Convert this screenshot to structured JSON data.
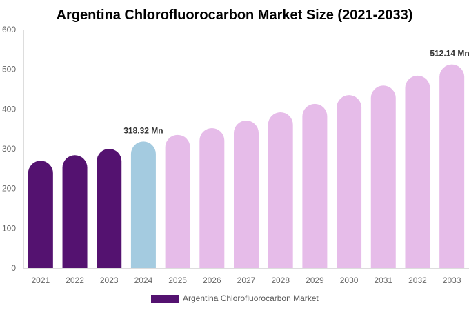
{
  "chart_data": {
    "type": "bar",
    "title": "Argentina Chlorofluorocarbon Market Size (2021-2033)",
    "xlabel": "",
    "ylabel": "",
    "ylim": [
      0,
      600
    ],
    "yticks": [
      0,
      100,
      200,
      300,
      400,
      500,
      600
    ],
    "grid": false,
    "legend_position": "bottom",
    "categories": [
      "2021",
      "2022",
      "2023",
      "2024",
      "2025",
      "2026",
      "2027",
      "2028",
      "2029",
      "2030",
      "2031",
      "2032",
      "2033"
    ],
    "series": [
      {
        "name": "Argentina Chlorofluorocarbon Market",
        "values": [
          270,
          284,
          300,
          318.32,
          335,
          352,
          371,
          392,
          413,
          435,
          459,
          484,
          512.14
        ],
        "colors": [
          "#541270",
          "#541270",
          "#541270",
          "#a4cbe0",
          "#e6bce9",
          "#e6bce9",
          "#e6bce9",
          "#e6bce9",
          "#e6bce9",
          "#e6bce9",
          "#e6bce9",
          "#e6bce9",
          "#e6bce9"
        ]
      }
    ],
    "data_labels": [
      {
        "category": "2024",
        "text": "318.32 Mn"
      },
      {
        "category": "2033",
        "text": "512.14 Mn"
      }
    ],
    "legend_color": "#541270"
  }
}
